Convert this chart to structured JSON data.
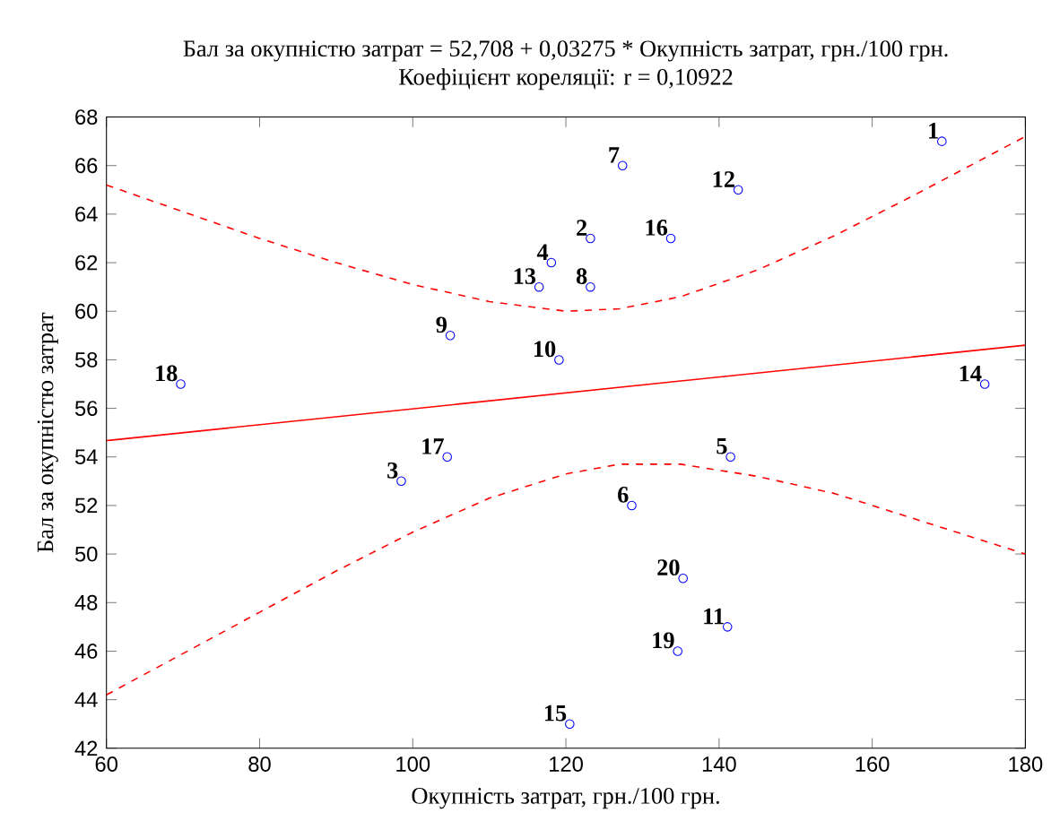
{
  "chart_data": {
    "type": "scatter",
    "title": "Бал за окупністю затрат = 52,708 + 0,03275 * Окупність затрат, грн./100 грн.",
    "subtitle": "Коефіцієнт кореляції: r = 0,10922",
    "xlabel": "Окупність затрат, грн./100 грн.",
    "ylabel": "Бал за окупністю затрат",
    "xlim": [
      60,
      180
    ],
    "ylim": [
      42,
      68
    ],
    "xticks": [
      60,
      80,
      100,
      120,
      140,
      160,
      180
    ],
    "yticks": [
      42,
      44,
      46,
      48,
      50,
      52,
      54,
      56,
      58,
      60,
      62,
      64,
      66,
      68
    ],
    "grid": false,
    "series": [
      {
        "color": "#0000ff",
        "marker": "circle",
        "x": [
          169.1,
          123.2,
          98.5,
          118.1,
          141.5,
          128.6,
          127.4,
          123.2,
          104.9,
          119.1,
          141.1,
          142.5,
          116.5,
          174.7,
          120.5,
          133.7,
          104.5,
          69.7,
          134.6,
          135.3
        ],
        "values": [
          67,
          63,
          53,
          62,
          54,
          52,
          66,
          61,
          59,
          58,
          47,
          65,
          61,
          57,
          43,
          63,
          54,
          57,
          46,
          49
        ]
      },
      {
        "type": "line",
        "color": "#ff0000",
        "line_style": "solid",
        "marker": "none",
        "x": [
          60,
          180
        ],
        "values": [
          54.67,
          58.6
        ]
      },
      {
        "type": "line",
        "color": "#ff0000",
        "line_style": "dashed",
        "marker": "none",
        "x": [
          60,
          70,
          80,
          90,
          100,
          110,
          120,
          127,
          135,
          145,
          155,
          165,
          180
        ],
        "values": [
          65.2,
          64.1,
          63.0,
          62.0,
          61.1,
          60.4,
          60.0,
          60.1,
          60.6,
          61.7,
          63.1,
          64.7,
          67.2
        ]
      },
      {
        "type": "line",
        "color": "#ff0000",
        "line_style": "dashed",
        "marker": "none",
        "x": [
          60,
          70,
          80,
          90,
          100,
          110,
          120,
          127,
          135,
          145,
          155,
          165,
          180
        ],
        "values": [
          44.2,
          45.9,
          47.6,
          49.3,
          50.9,
          52.3,
          53.3,
          53.7,
          53.7,
          53.2,
          52.5,
          51.5,
          50.0
        ]
      }
    ],
    "annotations": [
      {
        "text": "1",
        "x": 169.1,
        "y": 67
      },
      {
        "text": "2",
        "x": 123.2,
        "y": 63
      },
      {
        "text": "3",
        "x": 98.5,
        "y": 53
      },
      {
        "text": "4",
        "x": 118.1,
        "y": 62
      },
      {
        "text": "5",
        "x": 141.5,
        "y": 54
      },
      {
        "text": "6",
        "x": 128.6,
        "y": 52
      },
      {
        "text": "7",
        "x": 127.4,
        "y": 66
      },
      {
        "text": "8",
        "x": 123.2,
        "y": 61
      },
      {
        "text": "9",
        "x": 104.9,
        "y": 59
      },
      {
        "text": "10",
        "x": 119.1,
        "y": 58
      },
      {
        "text": "11",
        "x": 141.1,
        "y": 47
      },
      {
        "text": "12",
        "x": 142.5,
        "y": 65
      },
      {
        "text": "13",
        "x": 116.5,
        "y": 61
      },
      {
        "text": "14",
        "x": 174.7,
        "y": 57
      },
      {
        "text": "15",
        "x": 120.5,
        "y": 43
      },
      {
        "text": "16",
        "x": 133.7,
        "y": 63
      },
      {
        "text": "17",
        "x": 104.5,
        "y": 54
      },
      {
        "text": "18",
        "x": 69.7,
        "y": 57
      },
      {
        "text": "19",
        "x": 134.6,
        "y": 46
      },
      {
        "text": "20",
        "x": 135.3,
        "y": 49
      }
    ]
  }
}
